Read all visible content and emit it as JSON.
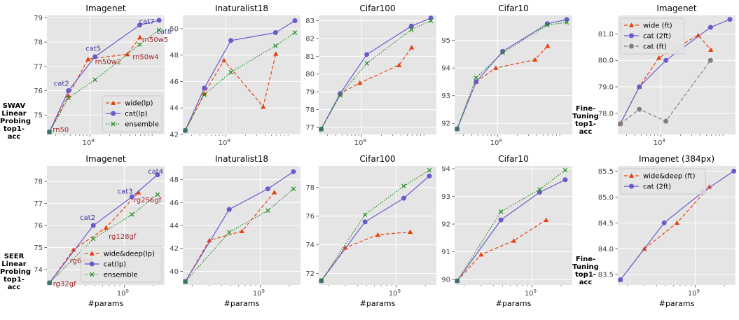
{
  "row_labels": [
    [
      "SWAV",
      "Linear Probing",
      "top1-acc"
    ],
    [
      "SEER",
      "Linear Probing",
      "top1-acc"
    ]
  ],
  "ft_labels": [
    [
      "Fine-Tuning",
      "top1-acc"
    ],
    [
      "Fine-Tuning",
      "top1-acc"
    ]
  ],
  "xlabel": "#params",
  "colors": {
    "wide": "#e8400c",
    "cat": "#6a5acd",
    "ensemble": "#1a8a1a",
    "cat_ft": "#808080",
    "panel_bg": "#e5e5e5",
    "grid": "#ffffff",
    "point_label_wide": "#a0282a",
    "point_label_cat": "#3b3b9a"
  },
  "chart_data": [
    {
      "type": "line",
      "title": "Imagenet",
      "xscale": "log",
      "xlim": [
        22000000.0,
        1400000000.0
      ],
      "ylim": [
        74.2,
        79.1
      ],
      "xticks": [
        {
          "v": 100000000.0,
          "label": "10^8"
        }
      ],
      "yticks": [
        75,
        76,
        77,
        78,
        79
      ],
      "ytick_labels": [
        "75",
        "76",
        "77",
        "78",
        "79"
      ],
      "legend": "lower-right",
      "series": [
        {
          "name": "wide(lp)",
          "style": "wide",
          "x": [
            24000000.0,
            47000000.0,
            94000000.0,
            375000000.0,
            586000000.0
          ],
          "y": [
            74.3,
            75.8,
            77.3,
            77.5,
            78.2
          ]
        },
        {
          "name": "cat(lp)",
          "style": "cat",
          "x": [
            24000000.0,
            47000000.0,
            120000000.0,
            580000000.0,
            1150000000.0
          ],
          "y": [
            74.3,
            76.0,
            77.4,
            78.7,
            78.9
          ]
        },
        {
          "name": "ensemble",
          "style": "ensemble",
          "x": [
            24000000.0,
            47000000.0,
            120000000.0,
            580000000.0,
            1150000000.0
          ],
          "y": [
            74.3,
            75.7,
            76.45,
            77.9,
            78.5
          ]
        }
      ],
      "annotations": [
        {
          "text": "rn50",
          "x": 27000000.0,
          "y": 74.3,
          "style": "wide"
        },
        {
          "text": "cat2",
          "x": 28000000.0,
          "y": 76.2,
          "style": "cat"
        },
        {
          "text": "cat5",
          "x": 86000000.0,
          "y": 77.65,
          "style": "cat"
        },
        {
          "text": "rn50w2",
          "x": 120000000.0,
          "y": 77.1,
          "style": "wide"
        },
        {
          "text": "rn50w4",
          "x": 450000000.0,
          "y": 77.3,
          "style": "wide"
        },
        {
          "text": "cat7",
          "x": 570000000.0,
          "y": 78.75,
          "style": "cat"
        },
        {
          "text": "cat8",
          "x": 1050000000.0,
          "y": 78.35,
          "style": "cat"
        },
        {
          "text": "rn50w5",
          "x": 630000000.0,
          "y": 78.0,
          "style": "wide"
        }
      ]
    },
    {
      "type": "line",
      "title": "Inaturalist18",
      "xscale": "log",
      "xlim": [
        22000000.0,
        1400000000.0
      ],
      "ylim": [
        42.0,
        51.0
      ],
      "xticks": [
        {
          "v": 100000000.0,
          "label": "10^8"
        }
      ],
      "yticks": [
        42,
        44,
        46,
        48,
        50
      ],
      "ytick_labels": [
        "42",
        "44",
        "46",
        "48",
        "50"
      ],
      "series": [
        {
          "name": "wide(lp)",
          "style": "wide",
          "x": [
            24000000.0,
            47000000.0,
            94000000.0,
            375000000.0,
            586000000.0
          ],
          "y": [
            42.3,
            45.1,
            47.6,
            44.1,
            48.1
          ]
        },
        {
          "name": "cat(lp)",
          "style": "cat",
          "x": [
            24000000.0,
            47000000.0,
            120000000.0,
            580000000.0,
            1150000000.0
          ],
          "y": [
            42.3,
            45.5,
            49.1,
            49.7,
            50.6
          ]
        },
        {
          "name": "ensemble",
          "style": "ensemble",
          "x": [
            24000000.0,
            47000000.0,
            120000000.0,
            580000000.0,
            1150000000.0
          ],
          "y": [
            42.3,
            45.0,
            46.7,
            48.7,
            49.7
          ]
        }
      ]
    },
    {
      "type": "line",
      "title": "Cifar100",
      "xscale": "log",
      "xlim": [
        22000000.0,
        1400000000.0
      ],
      "ylim": [
        76.6,
        83.3
      ],
      "xticks": [
        {
          "v": 100000000.0,
          "label": "10^8"
        }
      ],
      "yticks": [
        77,
        78,
        79,
        80,
        81,
        82,
        83
      ],
      "ytick_labels": [
        "77",
        "78",
        "79",
        "80",
        "81",
        "82",
        "83"
      ],
      "series": [
        {
          "name": "wide(lp)",
          "style": "wide",
          "x": [
            24000000.0,
            47000000.0,
            94000000.0,
            375000000.0,
            586000000.0
          ],
          "y": [
            76.9,
            78.9,
            79.5,
            80.5,
            81.5
          ]
        },
        {
          "name": "cat(lp)",
          "style": "cat",
          "x": [
            24000000.0,
            47000000.0,
            120000000.0,
            580000000.0,
            1150000000.0
          ],
          "y": [
            76.9,
            78.9,
            81.1,
            82.7,
            83.15
          ]
        },
        {
          "name": "ensemble",
          "style": "ensemble",
          "x": [
            24000000.0,
            47000000.0,
            120000000.0,
            580000000.0,
            1150000000.0
          ],
          "y": [
            76.9,
            78.8,
            80.6,
            82.5,
            83.0
          ]
        }
      ]
    },
    {
      "type": "line",
      "title": "Cifar10",
      "xscale": "log",
      "xlim": [
        22000000.0,
        1400000000.0
      ],
      "ylim": [
        91.6,
        95.9
      ],
      "xticks": [
        {
          "v": 100000000.0,
          "label": "10^8"
        }
      ],
      "yticks": [
        92,
        93,
        94,
        95
      ],
      "ytick_labels": [
        "92",
        "93",
        "94",
        "95"
      ],
      "series": [
        {
          "name": "wide(lp)",
          "style": "wide",
          "x": [
            24000000.0,
            47000000.0,
            94000000.0,
            375000000.0,
            586000000.0
          ],
          "y": [
            91.8,
            93.5,
            94.0,
            94.3,
            94.8
          ]
        },
        {
          "name": "cat(lp)",
          "style": "cat",
          "x": [
            24000000.0,
            47000000.0,
            120000000.0,
            580000000.0,
            1150000000.0
          ],
          "y": [
            91.8,
            93.5,
            94.6,
            95.6,
            95.75
          ]
        },
        {
          "name": "ensemble",
          "style": "ensemble",
          "x": [
            24000000.0,
            47000000.0,
            120000000.0,
            580000000.0,
            1150000000.0
          ],
          "y": [
            91.8,
            93.65,
            94.55,
            95.55,
            95.65
          ]
        }
      ]
    },
    {
      "type": "line",
      "title": "Imagenet",
      "xscale": "log",
      "xlim": [
        22000000.0,
        1400000000.0
      ],
      "ylim": [
        77.2,
        81.7
      ],
      "xticks": [
        {
          "v": 100000000.0,
          "label": "10^8"
        }
      ],
      "yticks": [
        78.0,
        79.0,
        80.0,
        81.0
      ],
      "ytick_labels": [
        "78.0",
        "79.0",
        "80.0",
        "81.0"
      ],
      "legend": "upper-left",
      "series": [
        {
          "name": "wide (ft)",
          "style": "wide",
          "x": [
            24000000.0,
            47000000.0,
            94000000.0,
            375000000.0,
            586000000.0
          ],
          "y": [
            77.6,
            79.0,
            80.1,
            80.95,
            80.4
          ]
        },
        {
          "name": "cat (2ft)",
          "style": "cat",
          "x": [
            24000000.0,
            47000000.0,
            120000000.0,
            580000000.0,
            1150000000.0
          ],
          "y": [
            77.6,
            79.0,
            80.0,
            81.25,
            81.55
          ]
        },
        {
          "name": "cat (ft)",
          "style": "cat_ft",
          "x": [
            24000000.0,
            47000000.0,
            120000000.0,
            580000000.0
          ],
          "y": [
            77.6,
            78.15,
            77.7,
            80.0
          ]
        }
      ]
    },
    {
      "type": "line",
      "title": "Imagenet",
      "xscale": "log",
      "xlim": [
        160000000.0,
        2600000000.0
      ],
      "ylim": [
        73.3,
        78.7
      ],
      "xticks": [
        {
          "v": 1000000000.0,
          "label": "10^9"
        }
      ],
      "yticks": [
        74,
        75,
        76,
        77,
        78
      ],
      "ytick_labels": [
        "74",
        "75",
        "76",
        "77",
        "78"
      ],
      "legend": "lower-right",
      "series": [
        {
          "name": "wide&deep(lp)",
          "style": "wide",
          "x": [
            170000000.0,
            300000000.0,
            650000000.0,
            1400000000.0
          ],
          "y": [
            73.4,
            74.9,
            75.9,
            77.5
          ]
        },
        {
          "name": "cat(lp)",
          "style": "cat",
          "x": [
            170000000.0,
            480000000.0,
            1200000000.0,
            2200000000.0
          ],
          "y": [
            73.4,
            76.0,
            77.3,
            78.3
          ]
        },
        {
          "name": "ensemble",
          "style": "ensemble",
          "x": [
            170000000.0,
            480000000.0,
            1200000000.0,
            2200000000.0
          ],
          "y": [
            73.4,
            75.4,
            76.5,
            77.4
          ]
        }
      ],
      "annotations": [
        {
          "text": "rg32gf",
          "x": 185000000.0,
          "y": 73.25,
          "style": "wide"
        },
        {
          "text": "rg64gf",
          "x": 275000000.0,
          "y": 74.3,
          "style": "wide"
        },
        {
          "text": "cat2",
          "x": 350000000.0,
          "y": 76.25,
          "style": "cat"
        },
        {
          "text": "rg128gf",
          "x": 690000000.0,
          "y": 75.4,
          "style": "wide"
        },
        {
          "text": "cat3",
          "x": 850000000.0,
          "y": 77.45,
          "style": "cat"
        },
        {
          "text": "rg256gf",
          "x": 1250000000.0,
          "y": 77.05,
          "style": "wide"
        },
        {
          "text": "cat4",
          "x": 1750000000.0,
          "y": 78.35,
          "style": "cat"
        }
      ]
    },
    {
      "type": "line",
      "title": "Inaturalist18",
      "xscale": "log",
      "xlim": [
        160000000.0,
        2600000000.0
      ],
      "ylim": [
        38.8,
        49.2
      ],
      "xticks": [
        {
          "v": 1000000000.0,
          "label": "10^9"
        }
      ],
      "yticks": [
        40,
        42,
        44,
        46,
        48
      ],
      "ytick_labels": [
        "40",
        "42",
        "44",
        "46",
        "48"
      ],
      "series": [
        {
          "name": "wide&deep(lp)",
          "style": "wide",
          "x": [
            170000000.0,
            300000000.0,
            650000000.0,
            1400000000.0
          ],
          "y": [
            39.1,
            42.7,
            43.5,
            46.9
          ]
        },
        {
          "name": "cat(lp)",
          "style": "cat",
          "x": [
            170000000.0,
            480000000.0,
            1200000000.0,
            2200000000.0
          ],
          "y": [
            39.1,
            45.4,
            47.2,
            48.7
          ]
        },
        {
          "name": "ensemble",
          "style": "ensemble",
          "x": [
            170000000.0,
            480000000.0,
            1200000000.0,
            2200000000.0
          ],
          "y": [
            39.1,
            43.4,
            45.3,
            47.2
          ]
        }
      ]
    },
    {
      "type": "line",
      "title": "Cifar100",
      "xscale": "log",
      "xlim": [
        160000000.0,
        2600000000.0
      ],
      "ylim": [
        71.2,
        79.5
      ],
      "xticks": [
        {
          "v": 1000000000.0,
          "label": "10^9"
        }
      ],
      "yticks": [
        72,
        74,
        76,
        78
      ],
      "ytick_labels": [
        "72",
        "74",
        "76",
        "78"
      ],
      "series": [
        {
          "name": "wide&deep(lp)",
          "style": "wide",
          "x": [
            170000000.0,
            300000000.0,
            650000000.0,
            1400000000.0
          ],
          "y": [
            71.5,
            73.8,
            74.7,
            74.9
          ]
        },
        {
          "name": "cat(lp)",
          "style": "cat",
          "x": [
            170000000.0,
            480000000.0,
            1200000000.0,
            2200000000.0
          ],
          "y": [
            71.5,
            75.6,
            77.25,
            78.8
          ]
        },
        {
          "name": "ensemble",
          "style": "ensemble",
          "x": [
            170000000.0,
            480000000.0,
            1200000000.0,
            2200000000.0
          ],
          "y": [
            71.5,
            76.1,
            78.1,
            79.2
          ]
        }
      ]
    },
    {
      "type": "line",
      "title": "Cifar10",
      "xscale": "log",
      "xlim": [
        160000000.0,
        2600000000.0
      ],
      "ylim": [
        89.8,
        94.1
      ],
      "xticks": [
        {
          "v": 1000000000.0,
          "label": "10^9"
        }
      ],
      "yticks": [
        90,
        91,
        92,
        93,
        94
      ],
      "ytick_labels": [
        "90",
        "91",
        "92",
        "93",
        "94"
      ],
      "series": [
        {
          "name": "wide&deep(lp)",
          "style": "wide",
          "x": [
            170000000.0,
            300000000.0,
            650000000.0,
            1400000000.0
          ],
          "y": [
            89.95,
            90.9,
            91.4,
            92.15
          ]
        },
        {
          "name": "cat(lp)",
          "style": "cat",
          "x": [
            170000000.0,
            480000000.0,
            1200000000.0,
            2200000000.0
          ],
          "y": [
            89.95,
            92.15,
            93.15,
            93.6
          ]
        },
        {
          "name": "ensemble",
          "style": "ensemble",
          "x": [
            170000000.0,
            480000000.0,
            1200000000.0,
            2200000000.0
          ],
          "y": [
            89.95,
            92.45,
            93.25,
            93.95
          ]
        }
      ]
    },
    {
      "type": "line",
      "title": "Imagenet (384px)",
      "xscale": "log",
      "xlim": [
        160000000.0,
        2600000000.0
      ],
      "ylim": [
        83.3,
        85.6
      ],
      "xticks": [
        {
          "v": 1000000000.0,
          "label": "10^9"
        }
      ],
      "yticks": [
        83.5,
        84.0,
        84.5,
        85.0,
        85.5
      ],
      "ytick_labels": [
        "83.5",
        "84.0",
        "84.5",
        "85.0",
        "85.5"
      ],
      "legend": "upper-left",
      "series": [
        {
          "name": "wide&deep (ft)",
          "style": "wide",
          "x": [
            170000000.0,
            300000000.0,
            650000000.0,
            1400000000.0
          ],
          "y": [
            83.4,
            84.0,
            84.5,
            85.2
          ]
        },
        {
          "name": "cat (2ft)",
          "style": "cat",
          "x": [
            170000000.0,
            480000000.0,
            1200000000.0,
            2500000000.0
          ],
          "y": [
            83.4,
            84.5,
            85.1,
            85.5
          ]
        }
      ]
    }
  ]
}
